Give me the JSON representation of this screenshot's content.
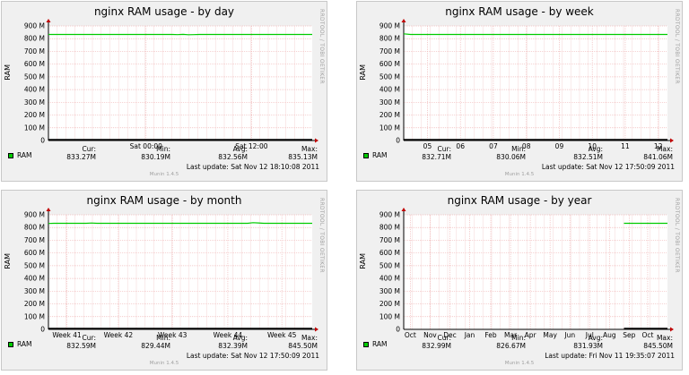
{
  "colors": {
    "series": "#00cc00",
    "grid": "#f0b8b8",
    "axis": "#000000",
    "arrow": "#c00000",
    "background": "#f0f0f0"
  },
  "side_text": "RRDTOOL / TOBI OETIKER",
  "munin": "Munin 1.4.5",
  "chart_data": [
    {
      "type": "line",
      "title": "nginx RAM usage - by day",
      "ylabel": "RAM",
      "ylim": [
        0,
        900
      ],
      "yticks": [
        "0",
        "100 M",
        "200 M",
        "300 M",
        "400 M",
        "500 M",
        "600 M",
        "700 M",
        "800 M",
        "900 M"
      ],
      "xticks": [
        "Sat 00:00",
        "Sat 12:00"
      ],
      "series": [
        {
          "name": "RAM",
          "values": [
            833,
            833,
            833,
            833,
            833,
            833,
            833,
            833,
            833,
            833,
            833,
            833,
            833,
            833,
            833,
            833,
            833,
            833,
            833,
            833,
            833,
            833,
            833,
            833,
            832,
            834,
            831,
            832,
            833,
            833,
            833,
            833,
            833,
            833,
            833,
            833,
            833,
            833,
            833,
            833,
            833,
            833,
            833,
            833,
            833,
            833,
            833,
            833,
            833,
            833
          ],
          "range": [
            0,
            1
          ]
        }
      ],
      "stats": {
        "cur_label": "Cur:",
        "cur": "833.27M",
        "min_label": "Min:",
        "min": "830.19M",
        "avg_label": "Avg:",
        "avg": "832.56M",
        "max_label": "Max:",
        "max": "835.13M"
      },
      "last_update": "Last update: Sat Nov 12 18:10:08 2011"
    },
    {
      "type": "line",
      "title": "nginx RAM usage - by week",
      "ylabel": "RAM",
      "ylim": [
        0,
        900
      ],
      "yticks": [
        "0",
        "100 M",
        "200 M",
        "300 M",
        "400 M",
        "500 M",
        "600 M",
        "700 M",
        "800 M",
        "900 M"
      ],
      "xticks": [
        "05",
        "06",
        "07",
        "08",
        "09",
        "10",
        "11",
        "12"
      ],
      "series": [
        {
          "name": "RAM",
          "values": [
            838,
            833,
            833,
            833,
            833,
            833,
            833,
            833,
            833,
            833,
            833,
            833,
            833,
            833,
            833,
            833,
            833,
            833,
            833,
            833,
            833,
            833,
            833,
            833,
            833,
            833,
            833,
            833,
            833,
            833,
            833,
            833,
            833,
            833,
            833,
            833,
            833,
            833,
            833,
            833
          ],
          "range": [
            0,
            1
          ]
        }
      ],
      "stats": {
        "cur_label": "Cur:",
        "cur": "832.71M",
        "min_label": "Min:",
        "min": "830.06M",
        "avg_label": "Avg:",
        "avg": "832.51M",
        "max_label": "Max:",
        "max": "841.06M"
      },
      "last_update": "Last update: Sat Nov 12 17:50:09 2011"
    },
    {
      "type": "line",
      "title": "nginx RAM usage - by month",
      "ylabel": "RAM",
      "ylim": [
        0,
        900
      ],
      "yticks": [
        "0",
        "100 M",
        "200 M",
        "300 M",
        "400 M",
        "500 M",
        "600 M",
        "700 M",
        "800 M",
        "900 M"
      ],
      "xticks": [
        "Week 41",
        "Week 42",
        "Week 43",
        "Week 44",
        "Week 45"
      ],
      "series": [
        {
          "name": "RAM",
          "values": [
            832,
            833,
            833,
            833,
            833,
            833,
            833,
            833,
            835,
            833,
            833,
            833,
            833,
            833,
            833,
            833,
            833,
            833,
            833,
            833,
            833,
            833,
            833,
            833,
            833,
            833,
            833,
            833,
            833,
            833,
            833,
            833,
            833,
            833,
            833,
            833,
            833,
            833,
            838,
            836,
            833,
            833,
            833,
            833,
            833,
            833,
            833,
            833,
            833,
            833
          ],
          "range": [
            0,
            1
          ]
        }
      ],
      "stats": {
        "cur_label": "Cur:",
        "cur": "832.59M",
        "min_label": "Min:",
        "min": "829.44M",
        "avg_label": "Avg:",
        "avg": "832.39M",
        "max_label": "Max:",
        "max": "845.50M"
      },
      "last_update": "Last update: Sat Nov 12 17:50:09 2011"
    },
    {
      "type": "line",
      "title": "nginx RAM usage - by year",
      "ylabel": "RAM",
      "ylim": [
        0,
        900
      ],
      "yticks": [
        "0",
        "100 M",
        "200 M",
        "300 M",
        "400 M",
        "500 M",
        "600 M",
        "700 M",
        "800 M",
        "900 M"
      ],
      "xticks": [
        "Oct",
        "Nov",
        "Dec",
        "Jan",
        "Feb",
        "Mar",
        "Apr",
        "May",
        "Jun",
        "Jul",
        "Aug",
        "Sep",
        "Oct"
      ],
      "series": [
        {
          "name": "RAM",
          "values": [
            833,
            833,
            833,
            833,
            833,
            833,
            833,
            833,
            833,
            833
          ],
          "range": [
            0.835,
            1
          ]
        }
      ],
      "stats": {
        "cur_label": "Cur:",
        "cur": "832.99M",
        "min_label": "Min:",
        "min": "826.67M",
        "avg_label": "Avg:",
        "avg": "831.93M",
        "max_label": "Max:",
        "max": "845.50M"
      },
      "last_update": "Last update: Fri Nov 11 19:35:07 2011"
    }
  ]
}
